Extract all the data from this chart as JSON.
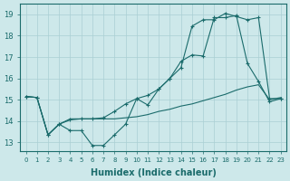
{
  "title": "",
  "xlabel": "Humidex (Indice chaleur)",
  "background_color": "#cde8ea",
  "grid_color": "#aacfd4",
  "line_color": "#1a6b6b",
  "x_ticks": [
    0,
    1,
    2,
    3,
    4,
    5,
    6,
    7,
    8,
    9,
    10,
    11,
    12,
    13,
    14,
    15,
    16,
    17,
    18,
    19,
    20,
    21,
    22,
    23
  ],
  "ylim": [
    12.6,
    19.5
  ],
  "xlim": [
    -0.5,
    23.5
  ],
  "yticks": [
    13,
    14,
    15,
    16,
    17,
    18,
    19
  ],
  "line1_x": [
    0,
    1,
    2,
    3,
    4,
    5,
    6,
    7,
    8,
    9,
    10,
    11,
    12,
    13,
    14,
    15,
    16,
    17,
    18,
    19,
    20,
    21,
    22,
    23
  ],
  "line1_y": [
    15.15,
    15.1,
    13.35,
    13.85,
    13.55,
    13.55,
    12.85,
    12.85,
    13.35,
    13.85,
    15.05,
    14.75,
    15.5,
    16.0,
    16.8,
    17.1,
    17.05,
    18.85,
    18.85,
    18.95,
    16.7,
    15.85,
    14.9,
    15.05
  ],
  "line2_x": [
    0,
    1,
    2,
    3,
    4,
    5,
    6,
    7,
    8,
    9,
    10,
    11,
    12,
    13,
    14,
    15,
    16,
    17,
    18,
    19,
    20,
    21,
    22,
    23
  ],
  "line2_y": [
    15.15,
    15.1,
    13.35,
    13.85,
    14.05,
    14.1,
    14.1,
    14.15,
    14.45,
    14.8,
    15.05,
    15.2,
    15.5,
    16.0,
    16.5,
    18.45,
    18.75,
    18.75,
    19.05,
    18.9,
    18.75,
    18.85,
    15.05,
    15.05
  ],
  "line3_x": [
    0,
    1,
    2,
    3,
    4,
    5,
    6,
    7,
    8,
    9,
    10,
    11,
    12,
    13,
    14,
    15,
    16,
    17,
    18,
    19,
    20,
    21,
    22,
    23
  ],
  "line3_y": [
    15.15,
    15.1,
    13.35,
    13.85,
    14.1,
    14.1,
    14.1,
    14.1,
    14.1,
    14.15,
    14.2,
    14.3,
    14.45,
    14.55,
    14.7,
    14.8,
    14.95,
    15.1,
    15.25,
    15.45,
    15.6,
    15.7,
    15.0,
    15.1
  ]
}
